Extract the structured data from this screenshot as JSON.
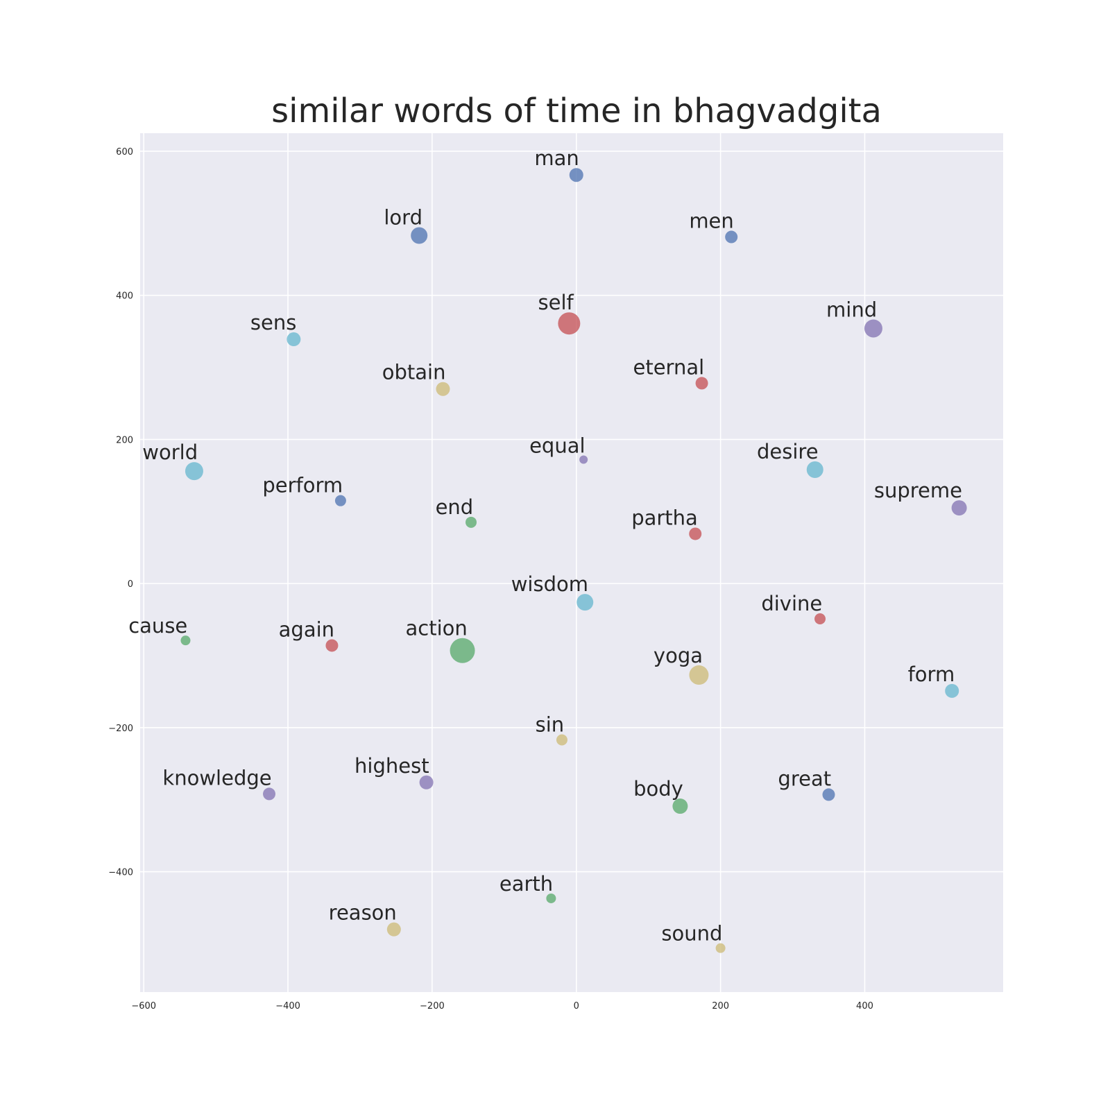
{
  "chart_data": {
    "type": "scatter",
    "title": "similar words of time in bhagvadgita",
    "xlabel": "",
    "ylabel": "",
    "xlim": [
      -605,
      592
    ],
    "ylim": [
      -567,
      625
    ],
    "x_ticks": [
      -600,
      -400,
      -200,
      0,
      200,
      400
    ],
    "y_ticks": [
      600,
      400,
      200,
      0,
      -200,
      -400
    ],
    "x_tick_labels": [
      "−600",
      "−400",
      "−200",
      "0",
      "200",
      "400"
    ],
    "y_tick_labels": [
      "600",
      "400",
      "200",
      "0",
      "−200",
      "−400"
    ],
    "grid": true,
    "background": "#eaeaf2",
    "colors": {
      "blue": "#4c72b0",
      "green": "#55a868",
      "red": "#c44e52",
      "purple": "#8172b2",
      "yellow": "#ccb974",
      "cyan": "#64b5cd"
    },
    "points": [
      {
        "label": "man",
        "x": 0,
        "y": 567,
        "color": "blue",
        "size": 10
      },
      {
        "label": "lord",
        "x": -218,
        "y": 483,
        "color": "blue",
        "size": 12
      },
      {
        "label": "men",
        "x": 215,
        "y": 481,
        "color": "blue",
        "size": 9
      },
      {
        "label": "self",
        "x": -10,
        "y": 361,
        "color": "red",
        "size": 16
      },
      {
        "label": "mind",
        "x": 412,
        "y": 354,
        "color": "purple",
        "size": 13
      },
      {
        "label": "sens",
        "x": -392,
        "y": 339,
        "color": "cyan",
        "size": 10
      },
      {
        "label": "obtain",
        "x": -185,
        "y": 270,
        "color": "yellow",
        "size": 10
      },
      {
        "label": "eternal",
        "x": 174,
        "y": 278,
        "color": "red",
        "size": 9
      },
      {
        "label": "equal",
        "x": 10,
        "y": 172,
        "color": "purple",
        "size": 6
      },
      {
        "label": "world",
        "x": -530,
        "y": 156,
        "color": "cyan",
        "size": 13
      },
      {
        "label": "desire",
        "x": 331,
        "y": 158,
        "color": "cyan",
        "size": 12
      },
      {
        "label": "perform",
        "x": -327,
        "y": 115,
        "color": "blue",
        "size": 8
      },
      {
        "label": "supreme",
        "x": 531,
        "y": 105,
        "color": "purple",
        "size": 11
      },
      {
        "label": "end",
        "x": -146,
        "y": 85,
        "color": "green",
        "size": 8
      },
      {
        "label": "partha",
        "x": 165,
        "y": 69,
        "color": "red",
        "size": 9
      },
      {
        "label": "wisdom",
        "x": 12,
        "y": -26,
        "color": "cyan",
        "size": 12
      },
      {
        "label": "divine",
        "x": 338,
        "y": -49,
        "color": "red",
        "size": 8
      },
      {
        "label": "cause",
        "x": -542,
        "y": -79,
        "color": "green",
        "size": 7
      },
      {
        "label": "again",
        "x": -339,
        "y": -86,
        "color": "red",
        "size": 9
      },
      {
        "label": "action",
        "x": -158,
        "y": -93,
        "color": "green",
        "size": 18
      },
      {
        "label": "yoga",
        "x": 170,
        "y": -127,
        "color": "yellow",
        "size": 14
      },
      {
        "label": "form",
        "x": 521,
        "y": -149,
        "color": "cyan",
        "size": 10
      },
      {
        "label": "sin",
        "x": -20,
        "y": -217,
        "color": "yellow",
        "size": 8
      },
      {
        "label": "highest",
        "x": -208,
        "y": -276,
        "color": "purple",
        "size": 10
      },
      {
        "label": "knowledge",
        "x": -426,
        "y": -292,
        "color": "purple",
        "size": 9
      },
      {
        "label": "great",
        "x": 350,
        "y": -293,
        "color": "blue",
        "size": 9
      },
      {
        "label": "body",
        "x": 144,
        "y": -309,
        "color": "green",
        "size": 11
      },
      {
        "label": "earth",
        "x": -35,
        "y": -437,
        "color": "green",
        "size": 7
      },
      {
        "label": "reason",
        "x": -253,
        "y": -480,
        "color": "yellow",
        "size": 10
      },
      {
        "label": "sound",
        "x": 200,
        "y": -506,
        "color": "yellow",
        "size": 7
      }
    ]
  }
}
